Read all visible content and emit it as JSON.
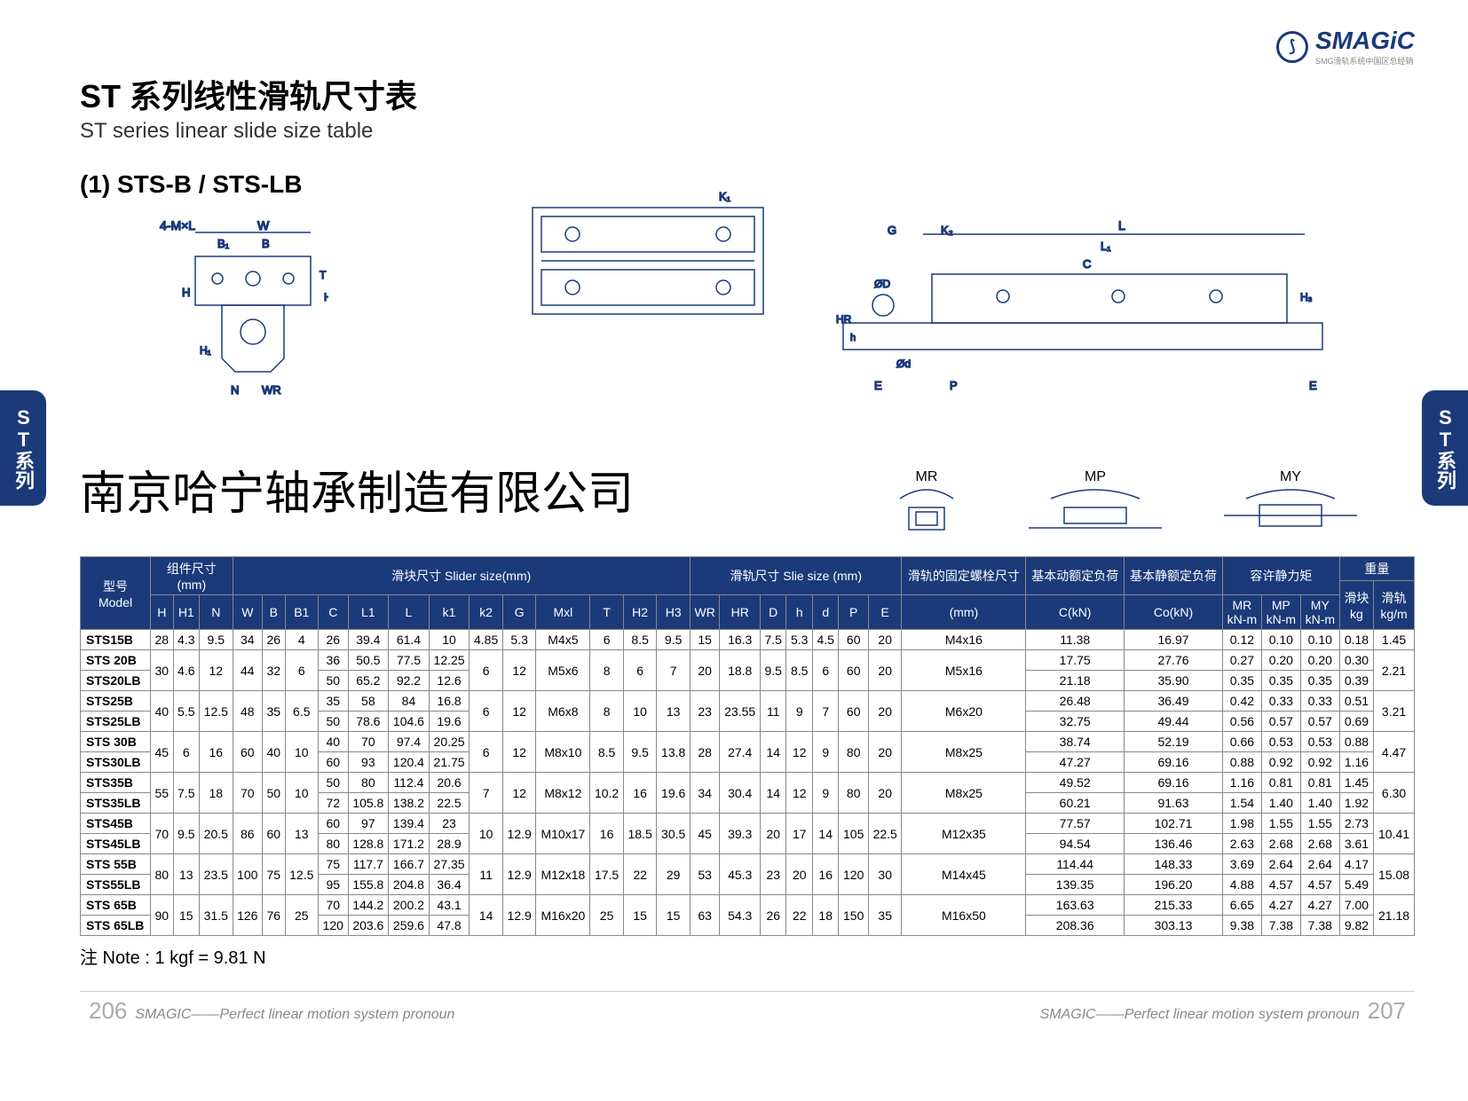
{
  "logo": {
    "text": "SMAGiC",
    "sub": "SMG滑轨系统中国区总经销"
  },
  "title_cn": "ST 系列线性滑轨尺寸表",
  "title_en": "ST series linear slide size table",
  "section": "(1) STS-B / STS-LB",
  "side_tab": "ST系列",
  "company": "南京哈宁轴承制造有限公司",
  "moments": [
    "MR",
    "MP",
    "MY"
  ],
  "diagram_labels": {
    "top_left": [
      "4-M×L",
      "W",
      "B1",
      "B",
      "H",
      "T",
      "H2",
      "H1",
      "N",
      "WR"
    ],
    "top_right": [
      "K1"
    ],
    "side": [
      "G",
      "K2",
      "L",
      "L1",
      "C",
      "ØD",
      "H3",
      "HR",
      "h",
      "Ød",
      "E",
      "P",
      "E"
    ]
  },
  "note": "注 Note : 1 kgf = 9.81 N",
  "footer": {
    "left_page": "206",
    "right_page": "207",
    "slogan": "SMAGIC——Perfect linear motion system pronoun"
  },
  "table": {
    "header_groups": [
      {
        "label": "型号\nModel",
        "span": 1
      },
      {
        "label": "组件尺寸\n(mm)",
        "span": 3
      },
      {
        "label": "滑块尺寸 Slider size(mm)",
        "span": 13
      },
      {
        "label": "滑轨尺寸 Slie size (mm)",
        "span": 7
      },
      {
        "label": "滑轨的固定螺栓尺寸",
        "span": 1
      },
      {
        "label": "基本动额定负荷",
        "span": 1
      },
      {
        "label": "基本静额定负荷",
        "span": 1
      },
      {
        "label": "容许静力矩",
        "span": 3
      },
      {
        "label": "重量",
        "span": 2
      }
    ],
    "sub_headers": [
      "",
      "H",
      "H1",
      "N",
      "W",
      "B",
      "B1",
      "C",
      "L1",
      "L",
      "k1",
      "k2",
      "G",
      "Mxl",
      "T",
      "H2",
      "H3",
      "WR",
      "HR",
      "D",
      "h",
      "d",
      "P",
      "E",
      "(mm)",
      "C(kN)",
      "Co(kN)",
      "MR\nkN-m",
      "MP\nkN-m",
      "MY\nkN-m",
      "滑块\nkg",
      "滑轨\nkg/m"
    ],
    "rows": [
      {
        "model": "STS15B",
        "H": "28",
        "H1": "4.3",
        "N": "9.5",
        "W": "34",
        "B": "26",
        "B1": "4",
        "C": "26",
        "L1": "39.4",
        "L": "61.4",
        "k1": "10",
        "k2": "4.85",
        "G": "5.3",
        "Mxl": "M4x5",
        "T": "6",
        "H2": "8.5",
        "H3": "9.5",
        "WR": "15",
        "HR": "16.3",
        "D": "7.5",
        "h": "5.3",
        "d": "4.5",
        "P": "60",
        "E": "20",
        "bolt": "M4x16",
        "CkN": "11.38",
        "CokN": "16.97",
        "MR": "0.12",
        "MP": "0.10",
        "MY": "0.10",
        "block": "0.18",
        "rail": "1.45"
      },
      {
        "model": "STS 20B",
        "H": "30",
        "H1": "4.6",
        "N": "12",
        "W": "44",
        "B": "32",
        "B1": "6",
        "C": "36",
        "L1": "50.5",
        "L": "77.5",
        "k1": "12.25",
        "k2": "6",
        "G": "12",
        "Mxl": "M5x6",
        "T": "8",
        "H2": "6",
        "H3": "7",
        "WR": "20",
        "HR": "18.8",
        "D": "9.5",
        "h": "8.5",
        "d": "6",
        "P": "60",
        "E": "20",
        "bolt": "M5x16",
        "CkN": "17.75",
        "CokN": "27.76",
        "MR": "0.27",
        "MP": "0.20",
        "MY": "0.20",
        "block": "0.30",
        "rail": "2.21",
        "merge_down": {
          "H": 1,
          "H1": 1,
          "N": 1,
          "W": 1,
          "B": 1,
          "B1": 1,
          "k2": 1,
          "G": 1,
          "Mxl": 1,
          "T": 1,
          "H2": 1,
          "H3": 1,
          "WR": 1,
          "HR": 1,
          "D": 1,
          "h": 1,
          "d": 1,
          "P": 1,
          "E": 1,
          "bolt": 1,
          "rail": 1
        }
      },
      {
        "model": "STS20LB",
        "C": "50",
        "L1": "65.2",
        "L": "92.2",
        "k1": "12.6",
        "CkN": "21.18",
        "CokN": "35.90",
        "MR": "0.35",
        "MP": "0.35",
        "MY": "0.35",
        "block": "0.39"
      },
      {
        "model": "STS25B",
        "H": "40",
        "H1": "5.5",
        "N": "12.5",
        "W": "48",
        "B": "35",
        "B1": "6.5",
        "C": "35",
        "L1": "58",
        "L": "84",
        "k1": "16.8",
        "k2": "6",
        "G": "12",
        "Mxl": "M6x8",
        "T": "8",
        "H2": "10",
        "H3": "13",
        "WR": "23",
        "HR": "23.55",
        "D": "11",
        "h": "9",
        "d": "7",
        "P": "60",
        "E": "20",
        "bolt": "M6x20",
        "CkN": "26.48",
        "CokN": "36.49",
        "MR": "0.42",
        "MP": "0.33",
        "MY": "0.33",
        "block": "0.51",
        "rail": "3.21",
        "merge_down": {
          "H": 1,
          "H1": 1,
          "N": 1,
          "W": 1,
          "B": 1,
          "B1": 1,
          "k2": 1,
          "G": 1,
          "Mxl": 1,
          "T": 1,
          "H2": 1,
          "H3": 1,
          "WR": 1,
          "HR": 1,
          "D": 1,
          "h": 1,
          "d": 1,
          "P": 1,
          "E": 1,
          "bolt": 1,
          "rail": 1
        }
      },
      {
        "model": "STS25LB",
        "C": "50",
        "L1": "78.6",
        "L": "104.6",
        "k1": "19.6",
        "CkN": "32.75",
        "CokN": "49.44",
        "MR": "0.56",
        "MP": "0.57",
        "MY": "0.57",
        "block": "0.69"
      },
      {
        "model": "STS 30B",
        "H": "45",
        "H1": "6",
        "N": "16",
        "W": "60",
        "B": "40",
        "B1": "10",
        "C": "40",
        "L1": "70",
        "L": "97.4",
        "k1": "20.25",
        "k2": "6",
        "G": "12",
        "Mxl": "M8x10",
        "T": "8.5",
        "H2": "9.5",
        "H3": "13.8",
        "WR": "28",
        "HR": "27.4",
        "D": "14",
        "h": "12",
        "d": "9",
        "P": "80",
        "E": "20",
        "bolt": "M8x25",
        "CkN": "38.74",
        "CokN": "52.19",
        "MR": "0.66",
        "MP": "0.53",
        "MY": "0.53",
        "block": "0.88",
        "rail": "4.47",
        "merge_down": {
          "H": 1,
          "H1": 1,
          "N": 1,
          "W": 1,
          "B": 1,
          "B1": 1,
          "k2": 1,
          "G": 1,
          "Mxl": 1,
          "T": 1,
          "H2": 1,
          "H3": 1,
          "WR": 1,
          "HR": 1,
          "D": 1,
          "h": 1,
          "d": 1,
          "P": 1,
          "E": 1,
          "bolt": 1,
          "rail": 1
        }
      },
      {
        "model": "STS30LB",
        "C": "60",
        "L1": "93",
        "L": "120.4",
        "k1": "21.75",
        "CkN": "47.27",
        "CokN": "69.16",
        "MR": "0.88",
        "MP": "0.92",
        "MY": "0.92",
        "block": "1.16"
      },
      {
        "model": "STS35B",
        "H": "55",
        "H1": "7.5",
        "N": "18",
        "W": "70",
        "B": "50",
        "B1": "10",
        "C": "50",
        "L1": "80",
        "L": "112.4",
        "k1": "20.6",
        "k2": "7",
        "G": "12",
        "Mxl": "M8x12",
        "T": "10.2",
        "H2": "16",
        "H3": "19.6",
        "WR": "34",
        "HR": "30.4",
        "D": "14",
        "h": "12",
        "d": "9",
        "P": "80",
        "E": "20",
        "bolt": "M8x25",
        "CkN": "49.52",
        "CokN": "69.16",
        "MR": "1.16",
        "MP": "0.81",
        "MY": "0.81",
        "block": "1.45",
        "rail": "6.30",
        "merge_down": {
          "H": 1,
          "H1": 1,
          "N": 1,
          "W": 1,
          "B": 1,
          "B1": 1,
          "k2": 1,
          "G": 1,
          "Mxl": 1,
          "T": 1,
          "H2": 1,
          "H3": 1,
          "WR": 1,
          "HR": 1,
          "D": 1,
          "h": 1,
          "d": 1,
          "P": 1,
          "E": 1,
          "bolt": 1,
          "rail": 1
        }
      },
      {
        "model": "STS35LB",
        "C": "72",
        "L1": "105.8",
        "L": "138.2",
        "k1": "22.5",
        "CkN": "60.21",
        "CokN": "91.63",
        "MR": "1.54",
        "MP": "1.40",
        "MY": "1.40",
        "block": "1.92"
      },
      {
        "model": "STS45B",
        "H": "70",
        "H1": "9.5",
        "N": "20.5",
        "W": "86",
        "B": "60",
        "B1": "13",
        "C": "60",
        "L1": "97",
        "L": "139.4",
        "k1": "23",
        "k2": "10",
        "G": "12.9",
        "Mxl": "M10x17",
        "T": "16",
        "H2": "18.5",
        "H3": "30.5",
        "WR": "45",
        "HR": "39.3",
        "D": "20",
        "h": "17",
        "d": "14",
        "P": "105",
        "E": "22.5",
        "bolt": "M12x35",
        "CkN": "77.57",
        "CokN": "102.71",
        "MR": "1.98",
        "MP": "1.55",
        "MY": "1.55",
        "block": "2.73",
        "rail": "10.41",
        "merge_down": {
          "H": 1,
          "H1": 1,
          "N": 1,
          "W": 1,
          "B": 1,
          "B1": 1,
          "k2": 1,
          "G": 1,
          "Mxl": 1,
          "T": 1,
          "H2": 1,
          "H3": 1,
          "WR": 1,
          "HR": 1,
          "D": 1,
          "h": 1,
          "d": 1,
          "P": 1,
          "E": 1,
          "bolt": 1,
          "rail": 1
        }
      },
      {
        "model": "STS45LB",
        "C": "80",
        "L1": "128.8",
        "L": "171.2",
        "k1": "28.9",
        "CkN": "94.54",
        "CokN": "136.46",
        "MR": "2.63",
        "MP": "2.68",
        "MY": "2.68",
        "block": "3.61"
      },
      {
        "model": "STS 55B",
        "H": "80",
        "H1": "13",
        "N": "23.5",
        "W": "100",
        "B": "75",
        "B1": "12.5",
        "C": "75",
        "L1": "117.7",
        "L": "166.7",
        "k1": "27.35",
        "k2": "11",
        "G": "12.9",
        "Mxl": "M12x18",
        "T": "17.5",
        "H2": "22",
        "H3": "29",
        "WR": "53",
        "HR": "45.3",
        "D": "23",
        "h": "20",
        "d": "16",
        "P": "120",
        "E": "30",
        "bolt": "M14x45",
        "CkN": "114.44",
        "CokN": "148.33",
        "MR": "3.69",
        "MP": "2.64",
        "MY": "2.64",
        "block": "4.17",
        "rail": "15.08",
        "merge_down": {
          "H": 1,
          "H1": 1,
          "N": 1,
          "W": 1,
          "B": 1,
          "B1": 1,
          "k2": 1,
          "G": 1,
          "Mxl": 1,
          "T": 1,
          "H2": 1,
          "H3": 1,
          "WR": 1,
          "HR": 1,
          "D": 1,
          "h": 1,
          "d": 1,
          "P": 1,
          "E": 1,
          "bolt": 1,
          "rail": 1
        }
      },
      {
        "model": "STS55LB",
        "C": "95",
        "L1": "155.8",
        "L": "204.8",
        "k1": "36.4",
        "CkN": "139.35",
        "CokN": "196.20",
        "MR": "4.88",
        "MP": "4.57",
        "MY": "4.57",
        "block": "5.49"
      },
      {
        "model": "STS 65B",
        "H": "90",
        "H1": "15",
        "N": "31.5",
        "W": "126",
        "B": "76",
        "B1": "25",
        "C": "70",
        "L1": "144.2",
        "L": "200.2",
        "k1": "43.1",
        "k2": "14",
        "G": "12.9",
        "Mxl": "M16x20",
        "T": "25",
        "H2": "15",
        "H3": "15",
        "WR": "63",
        "HR": "54.3",
        "D": "26",
        "h": "22",
        "d": "18",
        "P": "150",
        "E": "35",
        "bolt": "M16x50",
        "CkN": "163.63",
        "CokN": "215.33",
        "MR": "6.65",
        "MP": "4.27",
        "MY": "4.27",
        "block": "7.00",
        "rail": "21.18",
        "merge_down": {
          "H": 1,
          "H1": 1,
          "N": 1,
          "W": 1,
          "B": 1,
          "B1": 1,
          "k2": 1,
          "G": 1,
          "Mxl": 1,
          "T": 1,
          "H2": 1,
          "H3": 1,
          "WR": 1,
          "HR": 1,
          "D": 1,
          "h": 1,
          "d": 1,
          "P": 1,
          "E": 1,
          "bolt": 1,
          "rail": 1
        }
      },
      {
        "model": "STS 65LB",
        "C": "120",
        "L1": "203.6",
        "L": "259.6",
        "k1": "47.8",
        "CkN": "208.36",
        "CokN": "303.13",
        "MR": "9.38",
        "MP": "7.38",
        "MY": "7.38",
        "block": "9.82"
      }
    ],
    "col_order": [
      "model",
      "H",
      "H1",
      "N",
      "W",
      "B",
      "B1",
      "C",
      "L1",
      "L",
      "k1",
      "k2",
      "G",
      "Mxl",
      "T",
      "H2",
      "H3",
      "WR",
      "HR",
      "D",
      "h",
      "d",
      "P",
      "E",
      "bolt",
      "CkN",
      "CokN",
      "MR",
      "MP",
      "MY",
      "block",
      "rail"
    ]
  }
}
